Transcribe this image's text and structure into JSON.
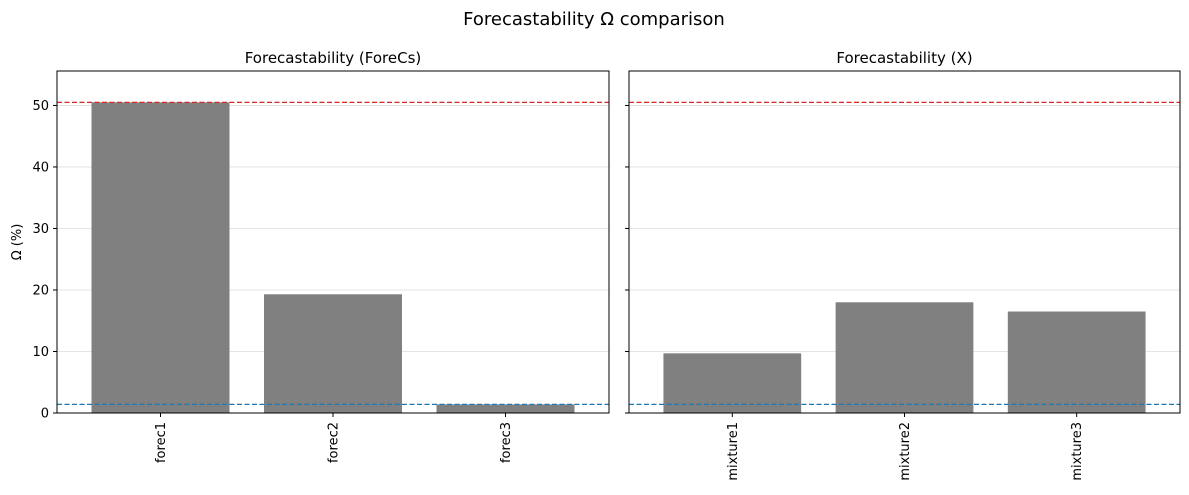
{
  "figure": {
    "suptitle": "Forecastability Ω comparison"
  },
  "colors": {
    "bar": "#808080",
    "upper_ref_line": "#d62728",
    "lower_ref_line": "#1f77b4",
    "grid": "#dddddd",
    "axes": "#000000"
  },
  "chart_data": [
    {
      "type": "bar",
      "title": "Forecastability (ForeCs)",
      "xlabel": "",
      "ylabel": "Ω (%)",
      "categories": [
        "forec1",
        "forec2",
        "forec3"
      ],
      "values": [
        50.5,
        19.3,
        1.4
      ],
      "ylim": [
        0,
        55.6
      ],
      "yticks": [
        0,
        10,
        20,
        30,
        40,
        50
      ],
      "reference_lines": [
        {
          "y": 50.5,
          "style": "dashed",
          "color": "#d62728"
        },
        {
          "y": 1.4,
          "style": "dashed",
          "color": "#1f77b4"
        }
      ],
      "grid": "y",
      "tick_label_rotation": 90
    },
    {
      "type": "bar",
      "title": "Forecastability (X)",
      "xlabel": "",
      "ylabel": "",
      "categories": [
        "mixture1",
        "mixture2",
        "mixture3"
      ],
      "values": [
        9.7,
        18.0,
        16.5
      ],
      "ylim": [
        0,
        55.6
      ],
      "yticks": [
        0,
        10,
        20,
        30,
        40,
        50
      ],
      "reference_lines": [
        {
          "y": 50.5,
          "style": "dashed",
          "color": "#d62728"
        },
        {
          "y": 1.4,
          "style": "dashed",
          "color": "#1f77b4"
        }
      ],
      "grid": "y",
      "shared_y": true,
      "tick_label_rotation": 90
    }
  ]
}
